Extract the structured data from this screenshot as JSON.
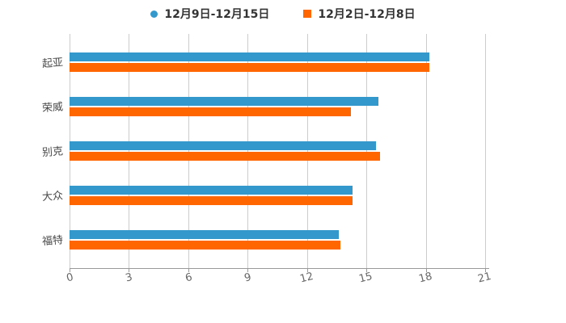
{
  "legend": {
    "items": [
      {
        "label": "12月9日-12月15日",
        "color": "#3399cc",
        "marker": "circle"
      },
      {
        "label": "12月2日-12月8日",
        "color": "#ff6600",
        "marker": "square"
      }
    ]
  },
  "chart_data": {
    "type": "bar",
    "orientation": "horizontal",
    "title": "",
    "xlabel": "",
    "ylabel": "",
    "categories": [
      "起亚",
      "荣威",
      "别克",
      "大众",
      "福特"
    ],
    "series": [
      {
        "name": "12月9日-12月15日",
        "color": "#3399cc",
        "values": [
          18.2,
          15.6,
          15.5,
          14.3,
          13.6
        ]
      },
      {
        "name": "12月2日-12月8日",
        "color": "#ff6600",
        "values": [
          18.2,
          14.2,
          15.7,
          14.3,
          13.7
        ]
      }
    ],
    "xlim": [
      0,
      21
    ],
    "x_ticks": [
      0,
      3,
      6,
      9,
      12,
      15,
      18,
      21
    ],
    "grid": true,
    "legend_position": "top",
    "colors": {
      "gridline": "#cccccc",
      "axis_line": "#999999",
      "x_tick_label": "#666666",
      "y_tick_label": "#4a4a4a",
      "legend_text": "#333333",
      "background": "#ffffff"
    }
  }
}
